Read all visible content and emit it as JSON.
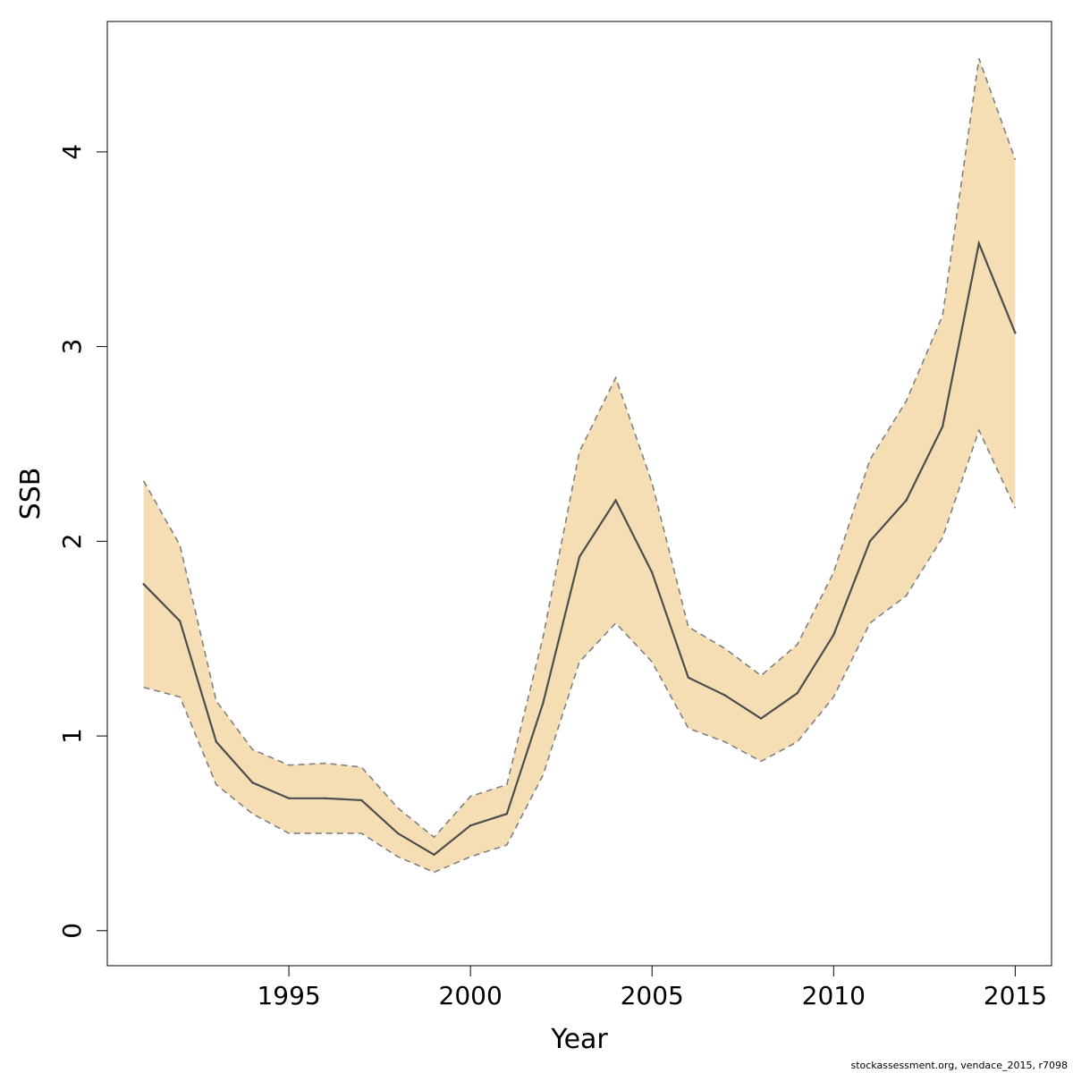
{
  "chart_data": {
    "type": "line",
    "xlabel": "Year",
    "ylabel": "SSB",
    "xlim": [
      1990,
      2016
    ],
    "ylim": [
      -0.18,
      4.67
    ],
    "x_ticks": [
      1995,
      2000,
      2005,
      2010,
      2015
    ],
    "y_ticks": [
      0,
      1,
      2,
      3,
      4
    ],
    "grid": false,
    "legend": "none",
    "colors": {
      "band": "#f5deb3",
      "line": "#4d4d4d",
      "bounds": "#808080"
    },
    "x": [
      1991,
      1992,
      1993,
      1994,
      1995,
      1996,
      1997,
      1998,
      1999,
      2000,
      2001,
      2002,
      2003,
      2004,
      2005,
      2006,
      2007,
      2008,
      2009,
      2010,
      2011,
      2012,
      2013,
      2014,
      2015
    ],
    "series": [
      {
        "role": "estimate",
        "values": [
          1.78,
          1.59,
          0.97,
          0.76,
          0.68,
          0.68,
          0.67,
          0.5,
          0.39,
          0.54,
          0.6,
          1.17,
          1.92,
          2.21,
          1.84,
          1.3,
          1.21,
          1.09,
          1.22,
          1.52,
          2.0,
          2.21,
          2.59,
          3.53,
          3.07
        ]
      },
      {
        "role": "upper",
        "values": [
          2.31,
          1.98,
          1.18,
          0.93,
          0.85,
          0.86,
          0.84,
          0.63,
          0.48,
          0.69,
          0.75,
          1.51,
          2.46,
          2.84,
          2.3,
          1.56,
          1.45,
          1.31,
          1.47,
          1.84,
          2.42,
          2.72,
          3.16,
          4.48,
          3.96
        ]
      },
      {
        "role": "lower",
        "values": [
          1.25,
          1.2,
          0.75,
          0.6,
          0.5,
          0.5,
          0.5,
          0.38,
          0.3,
          0.38,
          0.44,
          0.8,
          1.38,
          1.58,
          1.38,
          1.04,
          0.97,
          0.87,
          0.97,
          1.2,
          1.58,
          1.72,
          2.02,
          2.57,
          2.17
        ]
      }
    ]
  },
  "footer": {
    "text": "stockassessment.org, vendace_2015, r7098"
  }
}
